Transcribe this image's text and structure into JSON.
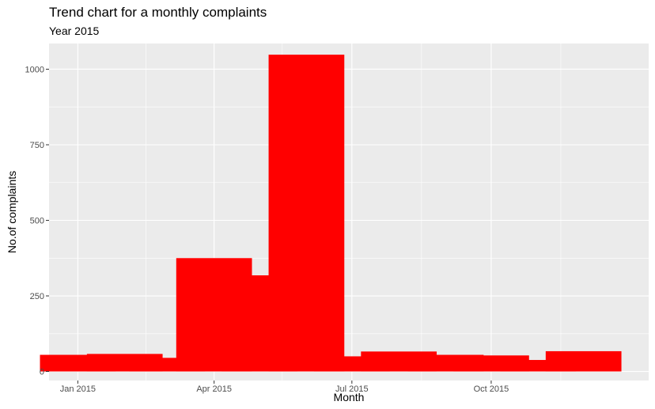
{
  "chart_data": {
    "type": "bar",
    "title": "Trend chart for a monthly complaints",
    "subtitle": "Year 2015",
    "xlabel": "Month",
    "ylabel": "No.of complaints",
    "x": [
      "2015-01-01",
      "2015-02-01",
      "2015-03-01",
      "2015-04-01",
      "2015-05-01",
      "2015-06-01",
      "2015-07-01",
      "2015-08-01",
      "2015-09-01",
      "2015-10-01",
      "2015-11-01",
      "2015-12-01"
    ],
    "values": [
      55,
      58,
      45,
      375,
      318,
      1048,
      50,
      66,
      55,
      53,
      38,
      67
    ],
    "bar_color": "#ff0000",
    "panel_background": "#ebebeb",
    "grid_color": "#ffffff",
    "grid": true,
    "legend": "none",
    "ylim": [
      -30,
      1085
    ],
    "y_ticks": [
      0,
      250,
      500,
      750,
      1000
    ],
    "y_tick_labels": [
      "0",
      "250",
      "500",
      "750",
      "1000"
    ],
    "x_lim": [
      "2014-12-13",
      "2016-01-13"
    ],
    "x_ticks": [
      "2015-01-01",
      "2015-04-01",
      "2015-07-01",
      "2015-10-01"
    ],
    "x_tick_labels": [
      "Jan 2015",
      "Apr 2015",
      "Jul 2015",
      "Oct 2015"
    ],
    "x_minor_ticks": [
      "2015-02-15",
      "2015-05-16",
      "2015-08-16",
      "2015-11-16"
    ]
  }
}
